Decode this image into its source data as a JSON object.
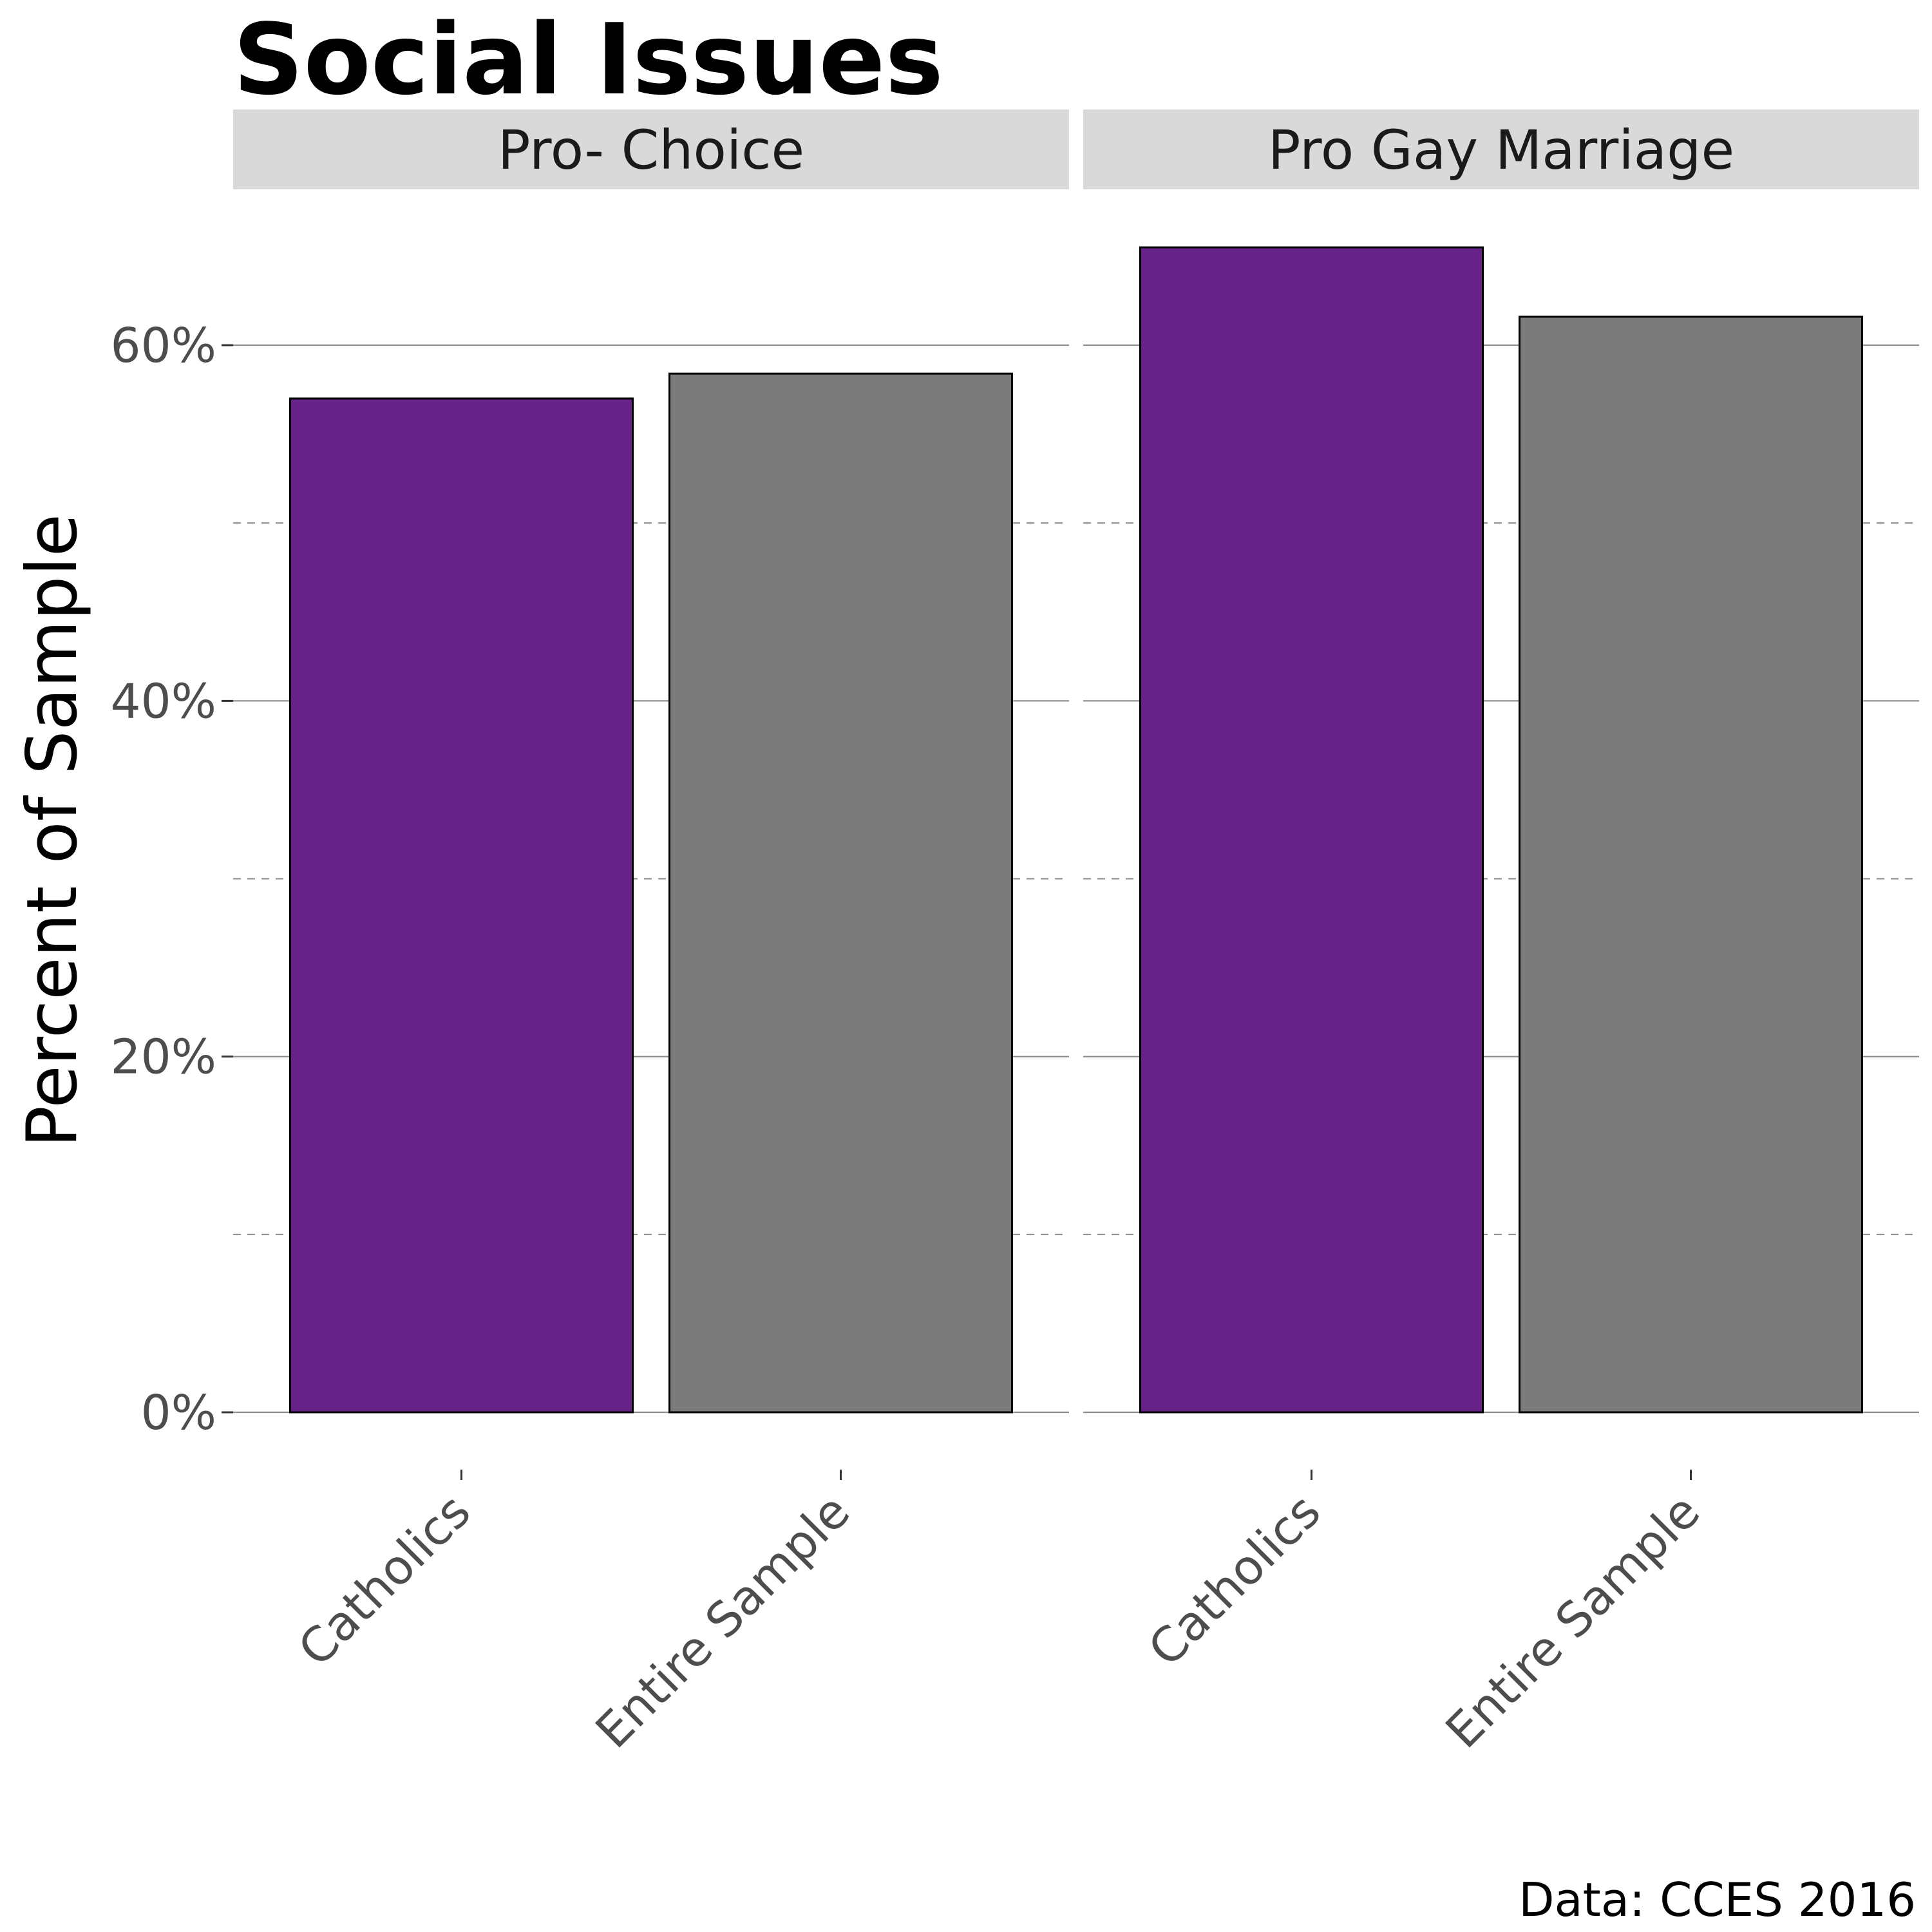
{
  "chart_data": {
    "type": "bar",
    "title": "Social Issues",
    "ylabel": "Percent of Sample",
    "xlabel": "",
    "caption": "Data: CCES 2016",
    "ylim": [
      0,
      0.68
    ],
    "y_ticks": [
      0,
      0.2,
      0.4,
      0.6
    ],
    "y_tick_labels": [
      "0%",
      "20%",
      "40%",
      "60%"
    ],
    "y_minor_ticks": [
      0.1,
      0.3,
      0.5
    ],
    "grid": true,
    "legend": "none",
    "colors": {
      "Catholics": "#662287",
      "Entire Sample": "#7a7a7a"
    },
    "panels": [
      {
        "name": "Pro- Choice",
        "categories": [
          "Catholics",
          "Entire Sample"
        ],
        "values": [
          0.57,
          0.584
        ]
      },
      {
        "name": "Pro Gay Marriage",
        "categories": [
          "Catholics",
          "Entire Sample"
        ],
        "values": [
          0.655,
          0.616
        ]
      }
    ]
  }
}
